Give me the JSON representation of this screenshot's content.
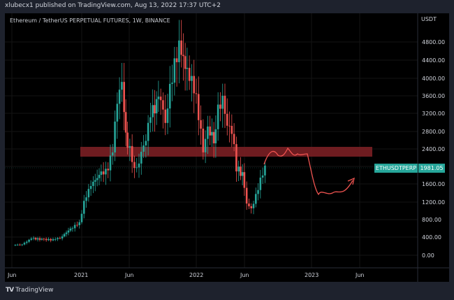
{
  "header": {
    "published": "xlubecx1 published on TradingView.com, Aug 13, 2022 17:37 UTC+2"
  },
  "chart": {
    "title": "Ethereum / TetherUS PERPETUAL FUTURES, 1W, BINANCE",
    "currency": "USDT",
    "symbol_tag": "ETHUSDTPERP",
    "last_price": "1981.05",
    "brand": "TradingView",
    "colors": {
      "up": "#26a69a",
      "down": "#ef5350",
      "zone": "#7a1f23",
      "background": "#000000",
      "frame": "#1e222d",
      "projection": "#ef5350"
    }
  },
  "chart_data": {
    "type": "candlestick",
    "title": "Ethereum / TetherUS PERPETUAL FUTURES, 1W, BINANCE",
    "xlabel": "",
    "ylabel": "USDT",
    "x_ticks": [
      "Jun",
      "2021",
      "Jun",
      "2022",
      "Jun",
      "2023",
      "Jun"
    ],
    "y_ticks": [
      "4800.00",
      "4400.00",
      "4000.00",
      "3600.00",
      "3200.00",
      "2800.00",
      "2400.00",
      "1600.00",
      "1200.00",
      "800.00",
      "400.00",
      "0.00"
    ],
    "ylim": [
      -450,
      5250
    ],
    "grid": true,
    "last_price": 1981.05,
    "resistance_zone": {
      "from": 2200,
      "to": 2450
    },
    "projection_path": [
      [
        2022.58,
        2000
      ],
      [
        2022.62,
        2300
      ],
      [
        2022.7,
        2250
      ],
      [
        2022.77,
        2420
      ],
      [
        2022.85,
        2250
      ],
      [
        2022.9,
        2270
      ],
      [
        2022.95,
        2250
      ],
      [
        2022.99,
        2280
      ],
      [
        2023.1,
        1400
      ],
      [
        2023.15,
        1450
      ],
      [
        2023.25,
        1420
      ],
      [
        2023.33,
        1470
      ],
      [
        2023.43,
        1760
      ]
    ],
    "series": [
      {
        "name": "ETHUSDTPERP weekly closes (approx)",
        "points": [
          [
            2020.42,
            235
          ],
          [
            2020.5,
            240
          ],
          [
            2020.58,
            380
          ],
          [
            2020.67,
            360
          ],
          [
            2020.75,
            350
          ],
          [
            2020.83,
            390
          ],
          [
            2020.92,
            600
          ],
          [
            2021.0,
            730
          ],
          [
            2021.04,
            1200
          ],
          [
            2021.1,
            1600
          ],
          [
            2021.17,
            1800
          ],
          [
            2021.25,
            1950
          ],
          [
            2021.29,
            2400
          ],
          [
            2021.33,
            3500
          ],
          [
            2021.37,
            3950
          ],
          [
            2021.4,
            2700
          ],
          [
            2021.46,
            2200
          ],
          [
            2021.5,
            1900
          ],
          [
            2021.54,
            2300
          ],
          [
            2021.58,
            2600
          ],
          [
            2021.62,
            3200
          ],
          [
            2021.67,
            3400
          ],
          [
            2021.71,
            3600
          ],
          [
            2021.75,
            3000
          ],
          [
            2021.79,
            3800
          ],
          [
            2021.83,
            4300
          ],
          [
            2021.87,
            4700
          ],
          [
            2021.92,
            4300
          ],
          [
            2021.96,
            4000
          ],
          [
            2022.0,
            3800
          ],
          [
            2022.04,
            3200
          ],
          [
            2022.08,
            2400
          ],
          [
            2022.12,
            2900
          ],
          [
            2022.17,
            2600
          ],
          [
            2022.21,
            3300
          ],
          [
            2022.25,
            3500
          ],
          [
            2022.29,
            2900
          ],
          [
            2022.33,
            2800
          ],
          [
            2022.37,
            2000
          ],
          [
            2022.42,
            1800
          ],
          [
            2022.46,
            1200
          ],
          [
            2022.5,
            1050
          ],
          [
            2022.54,
            1350
          ],
          [
            2022.58,
            1700
          ],
          [
            2022.62,
            1981.05
          ]
        ]
      }
    ]
  }
}
